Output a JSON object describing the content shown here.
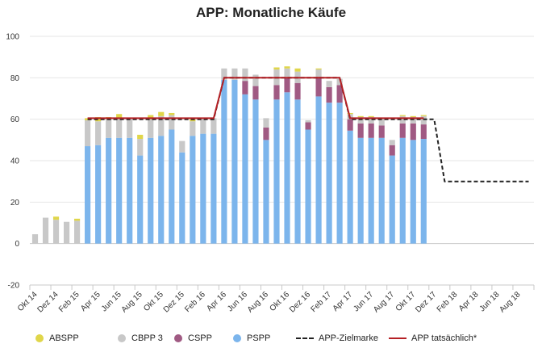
{
  "chart_data": {
    "type": "bar",
    "title": "APP: Monatliche Käufe",
    "ylim": [
      -20,
      100
    ],
    "yticks": [
      -20,
      0,
      20,
      40,
      60,
      80,
      100
    ],
    "grid": true,
    "legend_position": "bottom",
    "x": [
      "Okt 14",
      "Nov 14",
      "Dez 14",
      "Jan 15",
      "Feb 15",
      "Mär 15",
      "Apr 15",
      "Mai 15",
      "Jun 15",
      "Jul 15",
      "Aug 15",
      "Sep 15",
      "Okt 15",
      "Nov 15",
      "Dez 15",
      "Jan 16",
      "Feb 16",
      "Mär 16",
      "Apr 16",
      "Mai 16",
      "Jun 16",
      "Jul 16",
      "Aug 16",
      "Sep 16",
      "Okt 16",
      "Nov 16",
      "Dez 16",
      "Jan 17",
      "Feb 17",
      "Mär 17",
      "Apr 17",
      "Mai 17",
      "Jun 17",
      "Jul 17",
      "Aug 17",
      "Sep 17",
      "Okt 17",
      "Nov 17",
      "Dez 17",
      "Jan 18",
      "Feb 18",
      "Mär 18",
      "Apr 18",
      "Mai 18",
      "Jun 18",
      "Jul 18",
      "Aug 18",
      "Sep 18"
    ],
    "x_tick_labels": [
      "Okt 14",
      "Dez 14",
      "Feb 15",
      "Apr 15",
      "Jun 15",
      "Aug 15",
      "Okt 15",
      "Dez 15",
      "Feb 16",
      "Apr 16",
      "Jun 16",
      "Aug 16",
      "Okt 16",
      "Dez 16",
      "Feb 17",
      "Apr 17",
      "Jun 17",
      "Aug 17",
      "Okt 17",
      "Dez 17",
      "Feb 18",
      "Apr 18",
      "Jun 18",
      "Aug 18"
    ],
    "stacked_series": [
      {
        "name": "PSPP",
        "color": "#7cb5ec",
        "values": [
          0,
          0,
          0,
          0,
          0,
          47,
          47.5,
          51,
          51,
          51,
          42.5,
          51,
          52,
          55,
          44,
          52,
          53,
          53,
          79,
          79,
          72,
          69.5,
          50,
          69.5,
          73,
          69.5,
          55,
          71,
          68,
          68,
          54.5,
          51,
          51,
          51,
          42.5,
          51,
          50,
          50.5,
          null,
          null,
          null,
          null,
          null,
          null,
          null,
          null,
          null,
          null
        ]
      },
      {
        "name": "CSPP",
        "color": "#a05a83",
        "values": [
          0,
          0,
          0,
          0,
          0,
          0,
          0,
          0,
          0,
          0,
          0,
          0,
          0,
          0,
          0,
          0,
          0,
          0,
          0,
          0,
          6.5,
          6.5,
          6,
          7,
          7,
          8,
          3.5,
          9.5,
          7.5,
          8.5,
          5.5,
          7,
          7,
          6,
          5,
          7,
          8,
          7,
          null,
          null,
          null,
          null,
          null,
          null,
          null,
          null,
          null,
          null
        ]
      },
      {
        "name": "CBPP 3",
        "color": "#c8c8c8",
        "values": [
          4.5,
          12.5,
          11.5,
          10.5,
          11,
          12.5,
          11.5,
          9,
          9.5,
          9,
          8,
          9,
          9.5,
          7,
          5.5,
          7,
          7.5,
          7.5,
          5.5,
          5.5,
          6,
          5.5,
          4.5,
          7.5,
          4.5,
          5.5,
          1,
          3.5,
          3,
          3,
          2.5,
          3,
          3,
          3.5,
          2.5,
          3.5,
          3,
          4,
          null,
          null,
          null,
          null,
          null,
          null,
          null,
          null,
          null,
          null
        ]
      },
      {
        "name": "ABSPP",
        "color": "#e0d64a",
        "values": [
          0,
          0,
          1.5,
          0,
          1,
          1,
          2,
          1,
          2,
          0,
          2,
          2,
          2,
          1,
          0,
          1,
          0,
          0,
          0,
          0,
          0,
          0,
          0,
          1,
          1,
          1.5,
          0,
          0.5,
          0,
          0,
          0.5,
          0.5,
          0.5,
          0,
          0,
          0.5,
          0.5,
          0.5,
          null,
          null,
          null,
          null,
          null,
          null,
          null,
          null,
          null,
          null
        ]
      }
    ],
    "line_series": [
      {
        "name": "APP-Zielmarke",
        "color": "#222222",
        "dash": true,
        "values": [
          null,
          null,
          null,
          null,
          null,
          60,
          60,
          60,
          60,
          60,
          60,
          60,
          60,
          60,
          60,
          60,
          60,
          60,
          80,
          80,
          80,
          80,
          80,
          80,
          80,
          80,
          80,
          80,
          80,
          80,
          60,
          60,
          60,
          60,
          60,
          60,
          60,
          60,
          60,
          30,
          30,
          30,
          30,
          30,
          30,
          30,
          30,
          30
        ]
      },
      {
        "name": "APP tatsächlich*",
        "color": "#b52025",
        "dash": false,
        "values": [
          null,
          null,
          null,
          null,
          null,
          60.5,
          60.5,
          60.5,
          60.5,
          60.5,
          60.5,
          60.5,
          60.5,
          60.5,
          60.5,
          60.5,
          60.5,
          60.5,
          80,
          80,
          80,
          80,
          80,
          80,
          80,
          80,
          80,
          80,
          80,
          80,
          60.5,
          60.5,
          60.5,
          60.5,
          60.5,
          60.5,
          60.5,
          60.5,
          null,
          null,
          null,
          null,
          null,
          null,
          null,
          null,
          null,
          null
        ]
      }
    ],
    "legend": [
      {
        "label": "ABSPP",
        "kind": "dot",
        "color": "#e0d64a"
      },
      {
        "label": "CBPP 3",
        "kind": "dot",
        "color": "#c8c8c8"
      },
      {
        "label": "CSPP",
        "kind": "dot",
        "color": "#a05a83"
      },
      {
        "label": "PSPP",
        "kind": "dot",
        "color": "#7cb5ec"
      },
      {
        "label": "APP-Zielmarke",
        "kind": "dash",
        "color": "#222222"
      },
      {
        "label": "APP tatsächlich*",
        "kind": "line",
        "color": "#b52025"
      }
    ]
  }
}
